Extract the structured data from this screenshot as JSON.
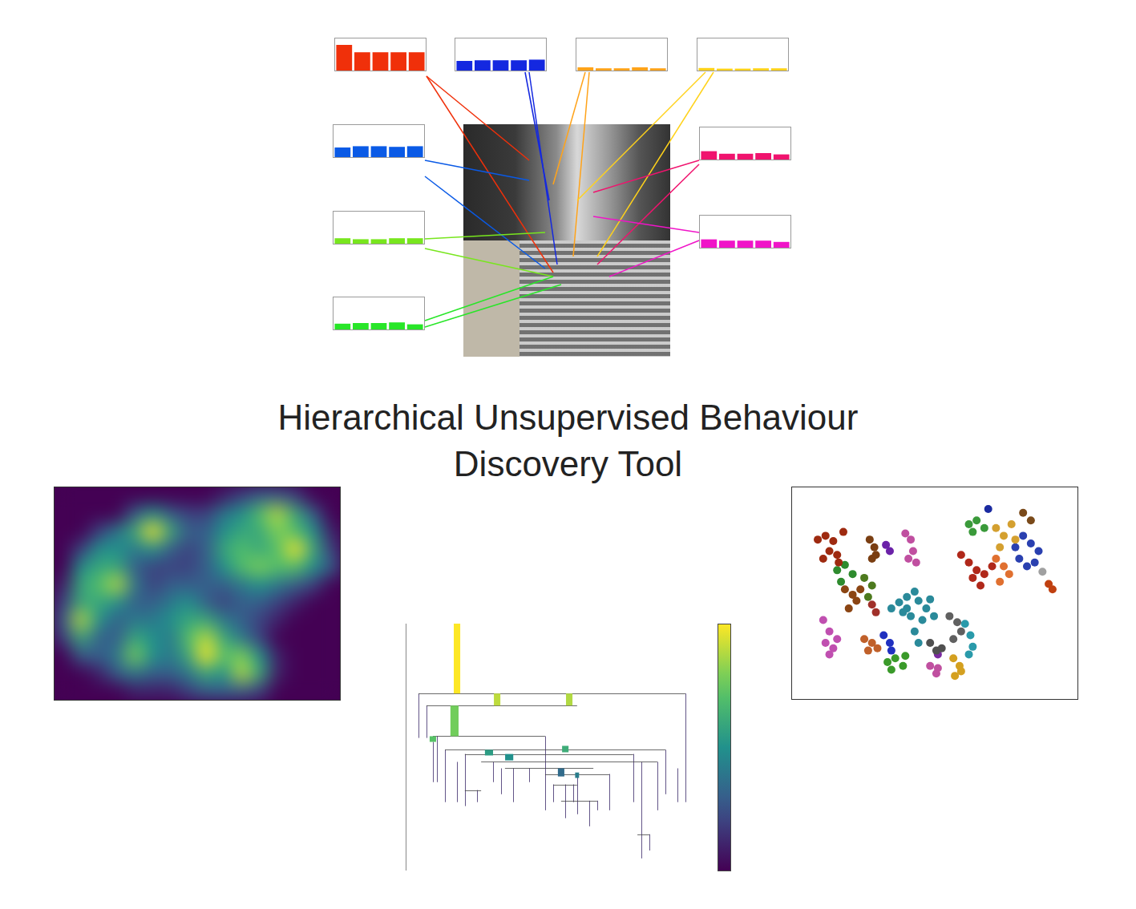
{
  "header": {
    "title_lines": [
      "Hierarchical Unsupervised Behaviour",
      "Discovery Tool"
    ]
  },
  "chart_data": [
    {
      "type": "bar",
      "color": "#f0300a",
      "values": [
        0.8,
        0.57,
        0.57,
        0.57,
        0.57
      ],
      "ylim": [
        0,
        1
      ],
      "tick_labels": false
    },
    {
      "type": "bar",
      "color": "#1428e0",
      "values": [
        0.3,
        0.32,
        0.32,
        0.32,
        0.34
      ],
      "ylim": [
        0,
        1
      ],
      "tick_labels": false
    },
    {
      "type": "bar",
      "color": "#ffa31a",
      "values": [
        0.1,
        0.07,
        0.07,
        0.1,
        0.07
      ],
      "ylim": [
        0,
        1
      ],
      "tick_labels": false
    },
    {
      "type": "bar",
      "color": "#ffd21a",
      "values": [
        0.08,
        0.06,
        0.06,
        0.07,
        0.07
      ],
      "ylim": [
        0,
        1
      ],
      "tick_labels": false
    },
    {
      "type": "bar",
      "color": "#0a5ae6",
      "values": [
        0.3,
        0.34,
        0.34,
        0.32,
        0.34
      ],
      "ylim": [
        0,
        1
      ],
      "tick_labels": false
    },
    {
      "type": "bar",
      "color": "#f0136e",
      "values": [
        0.26,
        0.18,
        0.18,
        0.2,
        0.16
      ],
      "ylim": [
        0,
        1
      ],
      "tick_labels": false
    },
    {
      "type": "bar",
      "color": "#78e61e",
      "values": [
        0.17,
        0.14,
        0.14,
        0.17,
        0.17
      ],
      "ylim": [
        0,
        1
      ],
      "tick_labels": false
    },
    {
      "type": "bar",
      "color": "#f014c8",
      "values": [
        0.26,
        0.22,
        0.22,
        0.22,
        0.18
      ],
      "ylim": [
        0,
        1
      ],
      "tick_labels": false
    },
    {
      "type": "bar",
      "color": "#28e628",
      "values": [
        0.18,
        0.2,
        0.2,
        0.22,
        0.16
      ],
      "ylim": [
        0,
        1
      ],
      "tick_labels": false
    },
    {
      "type": "heatmap",
      "xlim": [
        0,
        16
      ],
      "ylim": [
        0,
        12
      ],
      "zlim": [
        0,
        1
      ],
      "tick_labels": false,
      "cells": [
        [
          0,
          0,
          0,
          0,
          0,
          0,
          0,
          0,
          0,
          0.1,
          0.2,
          0.3,
          0.3,
          0.2,
          0,
          0
        ],
        [
          0,
          0,
          0,
          0,
          0.3,
          0.5,
          0.3,
          0.2,
          0.2,
          0.4,
          0.5,
          0.7,
          0.9,
          0.6,
          0.3,
          0
        ],
        [
          0,
          0,
          0.2,
          0.4,
          0.6,
          1.0,
          0.6,
          0.3,
          0.3,
          0.5,
          0.6,
          0.6,
          0.8,
          0.7,
          0.5,
          0.1
        ],
        [
          0,
          0.2,
          0.5,
          0.5,
          0.4,
          0.5,
          0.3,
          0.2,
          0.3,
          0.6,
          0.7,
          0.6,
          0.7,
          1.0,
          0.6,
          0.2
        ],
        [
          0,
          0.5,
          0.6,
          0.6,
          0.3,
          0.2,
          0.2,
          0.2,
          0.3,
          0.5,
          0.7,
          0.8,
          0.7,
          0.7,
          0.5,
          0.3
        ],
        [
          0.1,
          0.6,
          0.7,
          0.9,
          0.4,
          0.2,
          0.3,
          0.3,
          0.3,
          0.3,
          0.4,
          0.5,
          0.4,
          0.3,
          0.2,
          0
        ],
        [
          0.2,
          0.6,
          0.6,
          0.5,
          0.3,
          0.3,
          0.4,
          0.5,
          0.3,
          0.2,
          0.3,
          0.3,
          0.2,
          0.1,
          0,
          0
        ],
        [
          0.3,
          0.9,
          0.5,
          0.3,
          0.4,
          0.4,
          0.5,
          0.6,
          0.6,
          0.4,
          0.3,
          0.2,
          0.1,
          0,
          0,
          0
        ],
        [
          0.2,
          0.6,
          0.3,
          0.3,
          0.6,
          0.5,
          0.4,
          0.7,
          0.9,
          0.6,
          0.4,
          0.2,
          0,
          0,
          0,
          0
        ],
        [
          0,
          0.3,
          0.3,
          0.4,
          0.8,
          0.5,
          0.4,
          0.6,
          1.0,
          0.7,
          0.8,
          0.5,
          0.1,
          0,
          0,
          0
        ],
        [
          0,
          0,
          0.1,
          0.3,
          0.4,
          0.3,
          0.3,
          0.4,
          0.6,
          0.5,
          0.9,
          0.6,
          0.1,
          0,
          0,
          0
        ],
        [
          0,
          0,
          0,
          0,
          0.1,
          0.1,
          0.1,
          0.2,
          0.3,
          0.3,
          0.3,
          0.2,
          0,
          0,
          0,
          0
        ]
      ]
    },
    {
      "type": "dendrogram",
      "xlim": [
        0,
        100
      ],
      "ylim": [
        0,
        1
      ],
      "tick_labels": false,
      "colorbar": {
        "zlim": [
          0,
          1
        ]
      },
      "bars": [
        {
          "x": 18.3,
          "y0": 0.717,
          "y1": 1.0,
          "size": 2.3,
          "value": 1.0
        },
        {
          "x": 32.6,
          "y0": 0.668,
          "y1": 0.717,
          "size": 2.3,
          "value": 0.9
        },
        {
          "x": 58.3,
          "y0": 0.668,
          "y1": 0.717,
          "size": 2.3,
          "value": 0.88
        },
        {
          "x": 17.4,
          "y0": 0.544,
          "y1": 0.668,
          "size": 2.9,
          "value": 0.78
        },
        {
          "x": 9.7,
          "y0": 0.521,
          "y1": 0.544,
          "size": 2.3,
          "value": 0.72
        },
        {
          "x": 29.7,
          "y0": 0.466,
          "y1": 0.489,
          "size": 2.9,
          "value": 0.55
        },
        {
          "x": 56.9,
          "y0": 0.479,
          "y1": 0.505,
          "size": 2.3,
          "value": 0.62
        },
        {
          "x": 36.9,
          "y0": 0.446,
          "y1": 0.472,
          "size": 2.9,
          "value": 0.5
        },
        {
          "x": 55.4,
          "y0": 0.381,
          "y1": 0.414,
          "size": 2.3,
          "value": 0.35
        },
        {
          "x": 61.1,
          "y0": 0.375,
          "y1": 0.397,
          "size": 1.4,
          "value": 0.42
        }
      ],
      "splits": [
        {
          "y": 0.717,
          "x0": 4.6,
          "x1": 99.7
        },
        {
          "y": 0.668,
          "x0": 7.4,
          "x1": 61.1
        },
        {
          "y": 0.544,
          "x0": 9.7,
          "x1": 49.7
        },
        {
          "y": 0.489,
          "x0": 14.0,
          "x1": 92.6
        },
        {
          "y": 0.472,
          "x0": 21.1,
          "x1": 81.1
        },
        {
          "y": 0.44,
          "x0": 26.9,
          "x1": 89.7
        },
        {
          "y": 0.414,
          "x0": 35.4,
          "x1": 66.9
        },
        {
          "y": 0.391,
          "x0": 49.7,
          "x1": 72.6
        },
        {
          "y": 0.349,
          "x0": 52.6,
          "x1": 61.1
        },
        {
          "y": 0.326,
          "x0": 21.1,
          "x1": 26.9
        },
        {
          "y": 0.283,
          "x0": 55.4,
          "x1": 68.3
        },
        {
          "y": 0.147,
          "x0": 82.6,
          "x1": 86.9
        }
      ],
      "links": [
        {
          "x": 4.6,
          "y0": 0.537,
          "y1": 0.717
        },
        {
          "x": 7.4,
          "y0": 0.537,
          "y1": 0.668
        },
        {
          "x": 9.7,
          "y0": 0.358,
          "y1": 0.521
        },
        {
          "x": 11.1,
          "y0": 0.358,
          "y1": 0.544
        },
        {
          "x": 14.0,
          "y0": 0.277,
          "y1": 0.489
        },
        {
          "x": 18.3,
          "y0": 0.277,
          "y1": 0.44
        },
        {
          "x": 21.1,
          "y0": 0.261,
          "y1": 0.472
        },
        {
          "x": 25.4,
          "y0": 0.277,
          "y1": 0.326
        },
        {
          "x": 31.1,
          "y0": 0.358,
          "y1": 0.44
        },
        {
          "x": 34.0,
          "y0": 0.309,
          "y1": 0.414
        },
        {
          "x": 38.3,
          "y0": 0.277,
          "y1": 0.414
        },
        {
          "x": 44.0,
          "y0": 0.358,
          "y1": 0.414
        },
        {
          "x": 49.7,
          "y0": 0.244,
          "y1": 0.544
        },
        {
          "x": 52.6,
          "y0": 0.277,
          "y1": 0.349
        },
        {
          "x": 56.9,
          "y0": 0.212,
          "y1": 0.349
        },
        {
          "x": 59.7,
          "y0": 0.277,
          "y1": 0.349
        },
        {
          "x": 61.1,
          "y0": 0.228,
          "y1": 0.391
        },
        {
          "x": 65.4,
          "y0": 0.179,
          "y1": 0.283
        },
        {
          "x": 68.3,
          "y0": 0.244,
          "y1": 0.283
        },
        {
          "x": 72.6,
          "y0": 0.244,
          "y1": 0.391
        },
        {
          "x": 81.1,
          "y0": 0.277,
          "y1": 0.472
        },
        {
          "x": 84.0,
          "y0": 0.049,
          "y1": 0.44
        },
        {
          "x": 86.9,
          "y0": 0.081,
          "y1": 0.147
        },
        {
          "x": 89.7,
          "y0": 0.244,
          "y1": 0.44
        },
        {
          "x": 92.6,
          "y0": 0.309,
          "y1": 0.489
        },
        {
          "x": 96.9,
          "y0": 0.277,
          "y1": 0.414
        },
        {
          "x": 99.7,
          "y0": 0.277,
          "y1": 0.717
        }
      ]
    },
    {
      "type": "scatter",
      "xlim": [
        0,
        358
      ],
      "ylim": [
        0,
        266
      ],
      "tick_labels": false,
      "series": [
        {
          "color": "#9e2a10",
          "x": [
            28,
            38,
            48,
            43,
            53,
            35,
            61,
            55
          ],
          "values": [
            203,
            208,
            201,
            188,
            183,
            178,
            213,
            173
          ]
        },
        {
          "color": "#c04fa0",
          "x": [
            141,
            148,
            151,
            145,
            155
          ],
          "values": [
            211,
            203,
            188,
            178,
            173
          ]
        },
        {
          "color": "#6b22a8",
          "x": [
            116,
            121
          ],
          "values": [
            196,
            188
          ]
        },
        {
          "color": "#7a3e12",
          "x": [
            95,
            101,
            98,
            103
          ],
          "values": [
            203,
            193,
            178,
            183
          ]
        },
        {
          "color": "#2e8b2e",
          "x": [
            53,
            63,
            73,
            58
          ],
          "values": [
            163,
            170,
            158,
            148
          ]
        },
        {
          "color": "#8b4513",
          "x": [
            63,
            73,
            78,
            68,
            83
          ],
          "values": [
            138,
            131,
            123,
            113,
            138
          ]
        },
        {
          "color": "#4d7a1e",
          "x": [
            88,
            98,
            93
          ],
          "values": [
            153,
            143,
            128
          ]
        },
        {
          "color": "#a0302a",
          "x": [
            98,
            103
          ],
          "values": [
            118,
            108
          ]
        },
        {
          "color": "#c04fb0",
          "x": [
            35,
            43,
            38,
            48,
            53,
            43
          ],
          "values": [
            98,
            83,
            68,
            61,
            73,
            53
          ]
        },
        {
          "color": "#2a8a9a",
          "x": [
            123,
            133,
            143,
            153,
            158,
            168,
            178,
            163,
            148,
            138,
            153,
            158,
            143,
            173
          ],
          "values": [
            113,
            121,
            128,
            135,
            123,
            113,
            103,
            98,
            103,
            108,
            83,
            68,
            113,
            125
          ]
        },
        {
          "color": "#c0602a",
          "x": [
            88,
            98,
            105,
            93
          ],
          "values": [
            73,
            68,
            61,
            58
          ]
        },
        {
          "color": "#2030c0",
          "x": [
            113,
            121,
            123
          ],
          "values": [
            78,
            68,
            58
          ]
        },
        {
          "color": "#3a9a2a",
          "x": [
            118,
            128,
            138,
            123,
            141
          ],
          "values": [
            43,
            48,
            38,
            33,
            51
          ]
        },
        {
          "color": "#505050",
          "x": [
            173,
            181,
            188
          ],
          "values": [
            68,
            58,
            61
          ]
        },
        {
          "color": "#7a2aa0",
          "x": [
            183
          ],
          "values": [
            53
          ]
        },
        {
          "color": "#c050a0",
          "x": [
            173,
            181,
            183
          ],
          "values": [
            38,
            28,
            35
          ]
        },
        {
          "color": "#606060",
          "x": [
            198,
            208,
            213,
            203
          ],
          "values": [
            103,
            95,
            83,
            73
          ]
        },
        {
          "color": "#2a9aaa",
          "x": [
            218,
            225,
            228,
            223
          ],
          "values": [
            93,
            78,
            63,
            53
          ]
        },
        {
          "color": "#d4a020",
          "x": [
            203,
            211,
            205,
            213
          ],
          "values": [
            48,
            38,
            25,
            31
          ]
        },
        {
          "color": "#3a9a3a",
          "x": [
            223,
            233,
            243,
            228
          ],
          "values": [
            223,
            228,
            218,
            213
          ]
        },
        {
          "color": "#d4a030",
          "x": [
            258,
            268,
            278,
            283,
            263
          ],
          "values": [
            218,
            208,
            223,
            203,
            193
          ]
        },
        {
          "color": "#7a4a1a",
          "x": [
            293,
            303
          ],
          "values": [
            238,
            228
          ]
        },
        {
          "color": "#2a40b0",
          "x": [
            283,
            293,
            303,
            313,
            308,
            298,
            288
          ],
          "values": [
            193,
            208,
            198,
            188,
            173,
            168,
            178
          ]
        },
        {
          "color": "#b0281a",
          "x": [
            213,
            223,
            233,
            243,
            238,
            228,
            253
          ],
          "values": [
            183,
            173,
            163,
            158,
            143,
            153,
            168
          ]
        },
        {
          "color": "#e07030",
          "x": [
            258,
            268,
            275,
            263
          ],
          "values": [
            178,
            168,
            158,
            148
          ]
        },
        {
          "color": "#c04010",
          "x": [
            326,
            331
          ],
          "values": [
            145,
            138
          ]
        },
        {
          "color": "#1a2aa0",
          "x": [
            248
          ],
          "values": [
            243
          ]
        },
        {
          "color": "#a0a0a0",
          "x": [
            318
          ],
          "values": [
            161
          ]
        }
      ]
    }
  ]
}
